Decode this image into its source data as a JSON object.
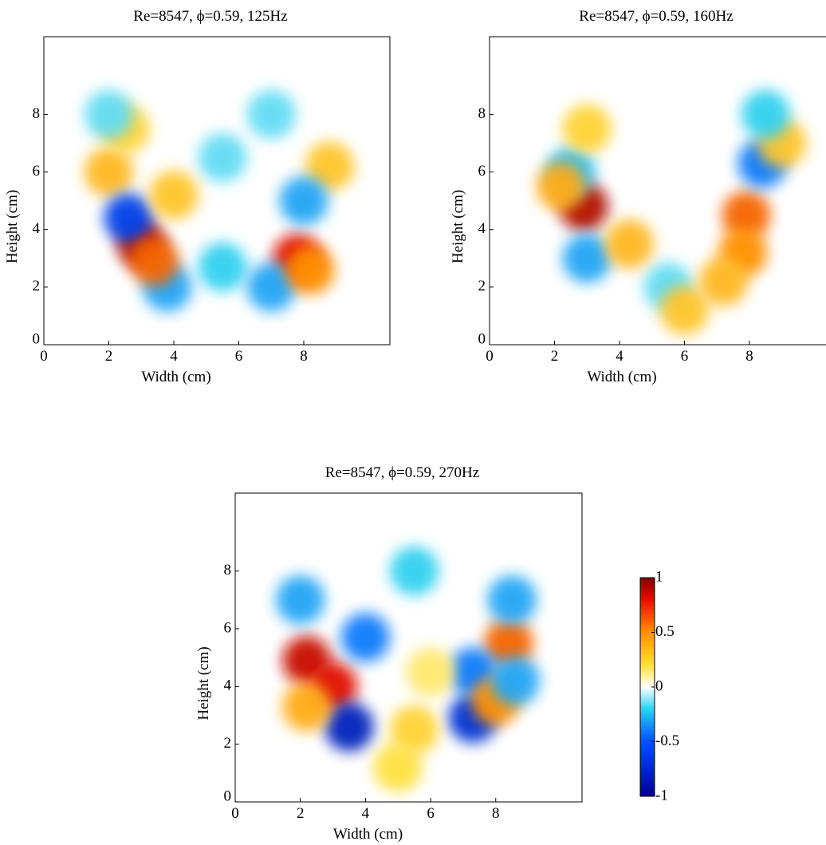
{
  "chart_data": [
    {
      "type": "heatmap",
      "title": "Re=8547, ϕ=0.59, 125Hz",
      "xlabel": "Width (cm)",
      "ylabel": "Height (cm)",
      "xlim": [
        0,
        10.65
      ],
      "ylim": [
        0,
        10.7
      ],
      "xticks": [
        0,
        2,
        4,
        6,
        8
      ],
      "yticks": [
        0,
        2,
        4,
        6,
        8
      ],
      "x": [
        3,
        7.8,
        2,
        2.5,
        8.8,
        5.5,
        5.5,
        8,
        2.6,
        4,
        3.8,
        7,
        2,
        7,
        3.4,
        8.2
      ],
      "y": [
        3.5,
        3,
        6,
        7.5,
        6.2,
        2.7,
        6.5,
        5,
        4.4,
        5.2,
        2,
        2,
        8,
        8,
        2.9,
        2.6
      ],
      "values": [
        0.9,
        0.8,
        0.35,
        0.25,
        0.3,
        -0.2,
        -0.15,
        -0.3,
        -0.6,
        0.3,
        -0.3,
        -0.3,
        -0.15,
        -0.15,
        0.6,
        0.5
      ]
    },
    {
      "type": "heatmap",
      "title": "Re=8547, ϕ=0.59, 160Hz",
      "xlabel": "Width (cm)",
      "ylabel": "Height (cm)",
      "xlim": [
        0,
        10.65
      ],
      "ylim": [
        0,
        10.7
      ],
      "xticks": [
        0,
        2,
        4,
        6,
        8
      ],
      "yticks": [
        0,
        2,
        4,
        6,
        8
      ],
      "x": [
        2.9,
        7.9,
        7.8,
        8.4,
        2.5,
        3,
        5.5,
        6,
        3,
        9,
        4.3,
        8.5,
        2.2,
        7.2
      ],
      "y": [
        4.8,
        4.5,
        3.2,
        6.3,
        6,
        3,
        2,
        1.2,
        7.5,
        7,
        3.5,
        8,
        5.5,
        2.2
      ],
      "values": [
        0.9,
        0.6,
        0.5,
        -0.4,
        -0.25,
        -0.3,
        -0.15,
        0.3,
        0.25,
        0.3,
        0.35,
        -0.2,
        0.4,
        0.35
      ]
    },
    {
      "type": "heatmap",
      "title": "Re=8547, ϕ=0.59, 270Hz",
      "xlabel": "Width (cm)",
      "ylabel": "Height (cm)",
      "xlim": [
        0,
        10.65
      ],
      "ylim": [
        0,
        10.7
      ],
      "xticks": [
        0,
        2,
        4,
        6,
        8
      ],
      "yticks": [
        0,
        2,
        4,
        6,
        8
      ],
      "x": [
        2.2,
        3,
        8.4,
        3.5,
        7.3,
        2,
        5.5,
        8.5,
        4,
        7.3,
        8,
        5.5,
        5,
        6,
        2.2,
        8.6
      ],
      "y": [
        4.9,
        4,
        5.5,
        2.6,
        2.9,
        7,
        8,
        7,
        5.7,
        4.5,
        3.5,
        2.5,
        1.2,
        4.5,
        3.3,
        4.2
      ],
      "values": [
        0.85,
        0.8,
        0.6,
        -0.8,
        -0.7,
        -0.3,
        -0.2,
        -0.3,
        -0.4,
        -0.4,
        0.5,
        0.25,
        0.2,
        0.15,
        0.4,
        -0.3
      ],
      "colorbar": {
        "lim": [
          -1,
          1
        ],
        "ticks": [
          1,
          0.5,
          0,
          -0.5,
          -1
        ]
      }
    }
  ]
}
